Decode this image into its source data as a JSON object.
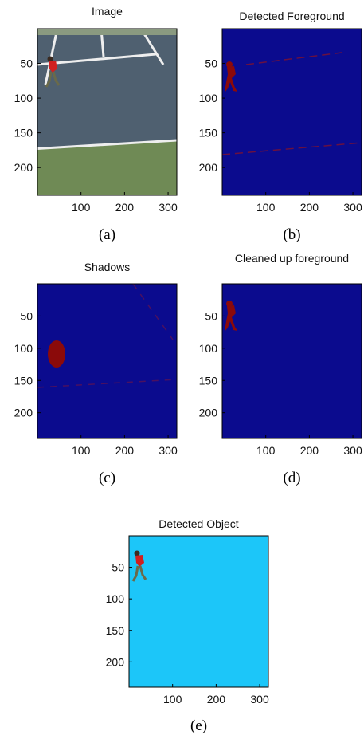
{
  "panels": [
    {
      "title": "Image",
      "caption": "(a)",
      "xlim": [
        0,
        320
      ],
      "ylim": [
        0,
        240
      ],
      "xticks": [
        100,
        200,
        300
      ],
      "yticks": [
        50,
        100,
        150,
        200
      ]
    },
    {
      "title": "Detected Foreground",
      "caption": "(b)",
      "xlim": [
        0,
        320
      ],
      "ylim": [
        0,
        240
      ],
      "xticks": [
        100,
        200,
        300
      ],
      "yticks": [
        50,
        100,
        150,
        200
      ]
    },
    {
      "title": "Shadows",
      "caption": "(c)",
      "xlim": [
        0,
        320
      ],
      "ylim": [
        0,
        240
      ],
      "xticks": [
        100,
        200,
        300
      ],
      "yticks": [
        50,
        100,
        150,
        200
      ]
    },
    {
      "title": "Cleaned up foreground",
      "caption": "(d)",
      "xlim": [
        0,
        320
      ],
      "ylim": [
        0,
        240
      ],
      "xticks": [
        100,
        200,
        300
      ],
      "yticks": [
        50,
        100,
        150,
        200
      ]
    },
    {
      "title": "Detected Object",
      "caption": "(e)",
      "xlim": [
        0,
        320
      ],
      "ylim": [
        0,
        240
      ],
      "xticks": [
        100,
        200,
        300
      ],
      "yticks": [
        50,
        100,
        150,
        200
      ]
    }
  ]
}
